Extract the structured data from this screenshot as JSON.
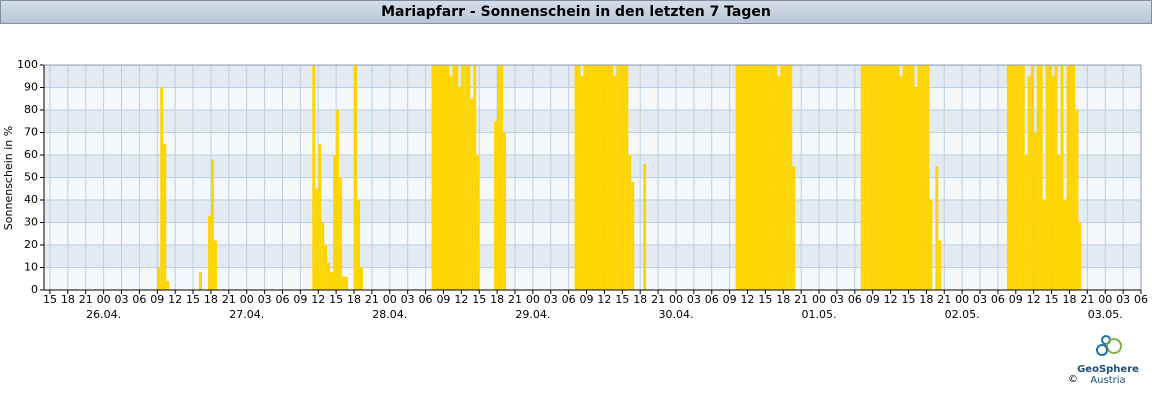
{
  "chart_data": {
    "type": "bar",
    "title": "Mariapfarr - Sonnenschein in den letzten 7 Tagen",
    "y_label": "Sonnenschein in %",
    "logo": {
      "name": "GeoSphere",
      "sub": "Austria",
      "copyright": "©"
    },
    "color": "#ffd500",
    "grid": true,
    "ylim": [
      0,
      100
    ],
    "yticks": [
      0,
      10,
      20,
      30,
      40,
      50,
      60,
      70,
      80,
      90,
      100
    ],
    "xlim": [
      14,
      198
    ],
    "xticks": [
      15,
      18,
      21,
      {
        "value": 24,
        "label": "00"
      },
      {
        "value": 27,
        "label": "03"
      },
      {
        "value": 30,
        "label": "06"
      },
      {
        "value": 33,
        "label": "09"
      },
      {
        "value": 36,
        "label": "12"
      },
      {
        "value": 39,
        "label": "15"
      },
      {
        "value": 42,
        "label": "18"
      },
      {
        "value": 45,
        "label": "21"
      },
      {
        "value": 48,
        "label": "00"
      },
      {
        "value": 51,
        "label": "03"
      },
      {
        "value": 54,
        "label": "06"
      },
      {
        "value": 57,
        "label": "09"
      },
      {
        "value": 60,
        "label": "12"
      },
      {
        "value": 63,
        "label": "15"
      },
      {
        "value": 66,
        "label": "18"
      },
      {
        "value": 69,
        "label": "21"
      },
      {
        "value": 72,
        "label": "00"
      },
      {
        "value": 75,
        "label": "03"
      },
      {
        "value": 78,
        "label": "06"
      },
      {
        "value": 81,
        "label": "09"
      },
      {
        "value": 84,
        "label": "12"
      },
      {
        "value": 87,
        "label": "15"
      },
      {
        "value": 90,
        "label": "18"
      },
      {
        "value": 93,
        "label": "21"
      },
      {
        "value": 96,
        "label": "00"
      },
      {
        "value": 99,
        "label": "03"
      },
      {
        "value": 102,
        "label": "06"
      },
      {
        "value": 105,
        "label": "09"
      },
      {
        "value": 108,
        "label": "12"
      },
      {
        "value": 111,
        "label": "15"
      },
      {
        "value": 114,
        "label": "18"
      },
      {
        "value": 117,
        "label": "21"
      },
      {
        "value": 120,
        "label": "00"
      },
      {
        "value": 123,
        "label": "03"
      },
      {
        "value": 126,
        "label": "06"
      },
      {
        "value": 129,
        "label": "09"
      },
      {
        "value": 132,
        "label": "12"
      },
      {
        "value": 135,
        "label": "15"
      },
      {
        "value": 138,
        "label": "18"
      },
      {
        "value": 141,
        "label": "21"
      },
      {
        "value": 144,
        "label": "00"
      },
      {
        "value": 147,
        "label": "03"
      },
      {
        "value": 150,
        "label": "06"
      },
      {
        "value": 153,
        "label": "09"
      },
      {
        "value": 156,
        "label": "12"
      },
      {
        "value": 159,
        "label": "15"
      },
      {
        "value": 162,
        "label": "18"
      },
      {
        "value": 165,
        "label": "21"
      },
      {
        "value": 168,
        "label": "00"
      },
      {
        "value": 171,
        "label": "03"
      },
      {
        "value": 174,
        "label": "06"
      },
      {
        "value": 177,
        "label": "09"
      },
      {
        "value": 180,
        "label": "12"
      },
      {
        "value": 183,
        "label": "15"
      },
      {
        "value": 186,
        "label": "18"
      },
      {
        "value": 189,
        "label": "21"
      },
      {
        "value": 192,
        "label": "00"
      },
      {
        "value": 195,
        "label": "03"
      },
      {
        "value": 198,
        "label": "06"
      }
    ],
    "date_labels": [
      {
        "value": 24,
        "label": "26.04."
      },
      {
        "value": 48,
        "label": "27.04."
      },
      {
        "value": 72,
        "label": "28.04."
      },
      {
        "value": 96,
        "label": "29.04."
      },
      {
        "value": 120,
        "label": "30.04."
      },
      {
        "value": 144,
        "label": "01.05."
      },
      {
        "value": 168,
        "label": "02.05."
      },
      {
        "value": 192,
        "label": "03.05."
      }
    ],
    "x": [
      33,
      33.5,
      34,
      34.5,
      40,
      41.5,
      42,
      42.5,
      59,
      59.5,
      60,
      60.5,
      61,
      61.5,
      62,
      62.5,
      63,
      63.5,
      64,
      64.5,
      66,
      66.5,
      67,
      79,
      79.5,
      80,
      80.5,
      81,
      81.5,
      82,
      82.5,
      83,
      83.5,
      84,
      84.5,
      85,
      85.5,
      86,
      86.5,
      89.5,
      90,
      90.5,
      91,
      103,
      103.5,
      104,
      104.5,
      105,
      105.5,
      106,
      106.5,
      107,
      107.5,
      108,
      108.5,
      109,
      109.5,
      110,
      110.5,
      111,
      111.5,
      112,
      112.5,
      114.5,
      130,
      130.5,
      131,
      131.5,
      132,
      132.5,
      133,
      133.5,
      134,
      134.5,
      135,
      135.5,
      136,
      136.5,
      137,
      137.5,
      138,
      138.5,
      139,
      139.5,
      151,
      151.5,
      152,
      152.5,
      153,
      153.5,
      154,
      154.5,
      155,
      155.5,
      156,
      156.5,
      157,
      157.5,
      158,
      158.5,
      159,
      159.5,
      160,
      160.5,
      161,
      161.5,
      162,
      162.5,
      163.5,
      164,
      175.5,
      176,
      176.5,
      177,
      177.5,
      178,
      178.5,
      179,
      179.5,
      180,
      180.5,
      181,
      181.5,
      182,
      182.5,
      183,
      183.5,
      184,
      184.5,
      185,
      185.5,
      186,
      186.5,
      187,
      187.5
    ],
    "values": [
      10,
      90,
      65,
      4,
      8,
      33,
      58,
      22,
      100,
      45,
      65,
      30,
      20,
      12,
      8,
      60,
      80,
      50,
      6,
      6,
      100,
      40,
      10,
      100,
      100,
      100,
      100,
      100,
      100,
      95,
      100,
      100,
      90,
      100,
      100,
      100,
      85,
      100,
      60,
      75,
      100,
      100,
      70,
      100,
      100,
      95,
      100,
      100,
      100,
      100,
      100,
      100,
      100,
      100,
      100,
      100,
      95,
      100,
      100,
      100,
      100,
      60,
      48,
      56,
      100,
      100,
      100,
      100,
      100,
      100,
      100,
      100,
      100,
      100,
      100,
      100,
      100,
      100,
      95,
      100,
      100,
      100,
      100,
      55,
      100,
      100,
      100,
      100,
      100,
      100,
      100,
      100,
      100,
      100,
      100,
      100,
      100,
      95,
      100,
      100,
      100,
      100,
      90,
      100,
      100,
      100,
      100,
      40,
      55,
      22,
      100,
      100,
      100,
      100,
      100,
      100,
      60,
      95,
      100,
      70,
      100,
      100,
      40,
      100,
      100,
      95,
      100,
      60,
      100,
      40,
      100,
      100,
      100,
      80,
      30
    ]
  }
}
